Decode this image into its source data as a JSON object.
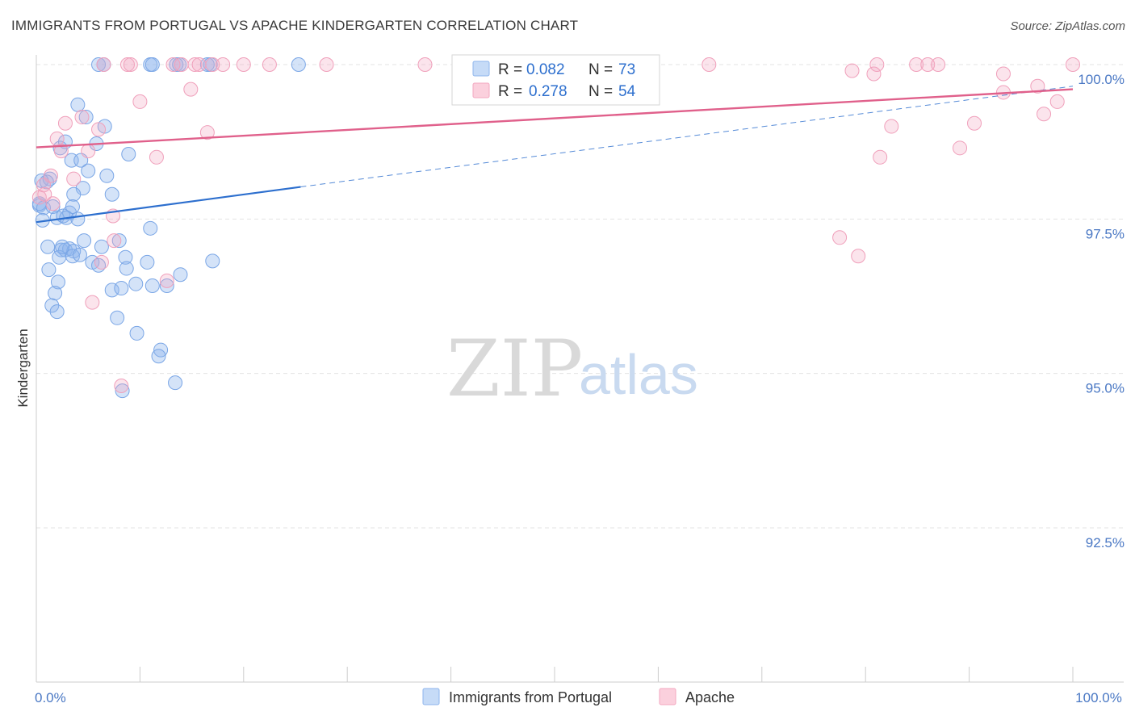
{
  "header": {
    "title": "IMMIGRANTS FROM PORTUGAL VS APACHE KINDERGARTEN CORRELATION CHART",
    "source": "Source: ZipAtlas.com"
  },
  "watermark": {
    "zip": "ZIP",
    "atlas": "atlas"
  },
  "legend_box": {
    "r_label": "R =",
    "n_label": "N =",
    "rows": [
      {
        "series": "Immigrants from Portugal",
        "r": "0.082",
        "n": "73",
        "color": "#8fb6ec"
      },
      {
        "series": "Apache",
        "r": "0.278",
        "n": "54",
        "color": "#f3a7c0"
      }
    ]
  },
  "bottom_legend": [
    {
      "label": "Immigrants from Portugal",
      "color": "#8fb6ec"
    },
    {
      "label": "Apache",
      "color": "#f3a7c0"
    }
  ],
  "chart_data": {
    "type": "scatter",
    "title": "IMMIGRANTS FROM PORTUGAL VS APACHE KINDERGARTEN CORRELATION CHART",
    "xlabel": "",
    "ylabel": "Kindergarten",
    "xlim": [
      0,
      100
    ],
    "ylim": [
      90.2,
      100.4
    ],
    "x_tick_labels": [
      {
        "value": 0,
        "label": "0.0%"
      },
      {
        "value": 100,
        "label": "100.0%"
      }
    ],
    "y_ticks": [
      {
        "value": 100.0,
        "label": "100.0%"
      },
      {
        "value": 97.5,
        "label": "97.5%"
      },
      {
        "value": 95.0,
        "label": "95.0%"
      },
      {
        "value": 92.5,
        "label": "92.5%"
      }
    ],
    "grid": true,
    "series": [
      {
        "name": "Immigrants from Portugal",
        "color": "#6f9fe0",
        "trend": {
          "x0": 0,
          "y0": 97.45,
          "x1": 25.5,
          "y1": 98.02,
          "dash_to_x": 100,
          "dash_to_y": 99.65,
          "color": "#2d6fce"
        },
        "points": [
          [
            6.0,
            100.0
          ],
          [
            6.5,
            100.0
          ],
          [
            11.0,
            100.0
          ],
          [
            11.2,
            100.0
          ],
          [
            13.5,
            100.0
          ],
          [
            13.8,
            100.0
          ],
          [
            16.5,
            100.0
          ],
          [
            16.8,
            100.0
          ],
          [
            25.3,
            100.0
          ],
          [
            4.0,
            99.35
          ],
          [
            4.8,
            99.15
          ],
          [
            6.6,
            99.0
          ],
          [
            2.3,
            98.65
          ],
          [
            2.8,
            98.75
          ],
          [
            5.8,
            98.72
          ],
          [
            3.4,
            98.45
          ],
          [
            4.3,
            98.45
          ],
          [
            8.9,
            98.55
          ],
          [
            5.0,
            98.28
          ],
          [
            6.8,
            98.2
          ],
          [
            7.3,
            97.9
          ],
          [
            4.5,
            98.0
          ],
          [
            1.3,
            98.15
          ],
          [
            0.5,
            98.12
          ],
          [
            3.6,
            97.9
          ],
          [
            0.3,
            97.72
          ],
          [
            0.7,
            97.68
          ],
          [
            1.6,
            97.7
          ],
          [
            0.6,
            97.48
          ],
          [
            2.0,
            97.52
          ],
          [
            2.6,
            97.55
          ],
          [
            3.2,
            97.6
          ],
          [
            3.5,
            97.7
          ],
          [
            2.9,
            97.52
          ],
          [
            4.0,
            97.5
          ],
          [
            1.1,
            97.05
          ],
          [
            2.4,
            97.0
          ],
          [
            2.8,
            97.0
          ],
          [
            3.2,
            97.02
          ],
          [
            3.6,
            96.98
          ],
          [
            4.6,
            97.15
          ],
          [
            6.3,
            97.05
          ],
          [
            8.0,
            97.15
          ],
          [
            11.0,
            97.35
          ],
          [
            2.2,
            96.88
          ],
          [
            3.5,
            96.9
          ],
          [
            5.4,
            96.8
          ],
          [
            8.6,
            96.88
          ],
          [
            8.7,
            96.7
          ],
          [
            10.7,
            96.8
          ],
          [
            13.9,
            96.6
          ],
          [
            17.0,
            96.82
          ],
          [
            1.2,
            96.68
          ],
          [
            2.1,
            96.48
          ],
          [
            1.8,
            96.3
          ],
          [
            7.3,
            96.35
          ],
          [
            8.2,
            96.38
          ],
          [
            9.6,
            96.45
          ],
          [
            11.2,
            96.42
          ],
          [
            12.6,
            96.42
          ],
          [
            1.5,
            96.1
          ],
          [
            2.0,
            96.0
          ],
          [
            7.8,
            95.9
          ],
          [
            9.7,
            95.65
          ],
          [
            12.0,
            95.38
          ],
          [
            11.8,
            95.28
          ],
          [
            13.4,
            94.85
          ],
          [
            8.3,
            94.72
          ],
          [
            0.3,
            97.75
          ],
          [
            1.0,
            98.1
          ],
          [
            2.5,
            97.05
          ],
          [
            4.2,
            96.92
          ],
          [
            6.0,
            96.75
          ]
        ]
      },
      {
        "name": "Apache",
        "color": "#ee8eae",
        "trend": {
          "x0": 0,
          "y0": 98.66,
          "x1": 100,
          "y1": 99.6,
          "color": "#e0608b"
        },
        "points": [
          [
            6.5,
            100.0
          ],
          [
            8.8,
            100.0
          ],
          [
            9.1,
            100.0
          ],
          [
            13.2,
            100.0
          ],
          [
            14.0,
            100.0
          ],
          [
            15.3,
            100.0
          ],
          [
            15.7,
            100.0
          ],
          [
            17.0,
            100.0
          ],
          [
            18.0,
            100.0
          ],
          [
            20.0,
            100.0
          ],
          [
            22.5,
            100.0
          ],
          [
            28.0,
            100.0
          ],
          [
            37.5,
            100.0
          ],
          [
            64.9,
            100.0
          ],
          [
            81.1,
            100.0
          ],
          [
            84.9,
            100.0
          ],
          [
            86.0,
            100.0
          ],
          [
            87.0,
            100.0
          ],
          [
            100.0,
            100.0
          ],
          [
            78.7,
            99.9
          ],
          [
            80.8,
            99.85
          ],
          [
            93.3,
            99.85
          ],
          [
            14.9,
            99.6
          ],
          [
            96.6,
            99.65
          ],
          [
            93.3,
            99.55
          ],
          [
            10.0,
            99.4
          ],
          [
            98.5,
            99.4
          ],
          [
            4.4,
            99.15
          ],
          [
            2.8,
            99.05
          ],
          [
            6.0,
            98.95
          ],
          [
            16.5,
            98.9
          ],
          [
            82.5,
            99.0
          ],
          [
            90.5,
            99.05
          ],
          [
            2.0,
            98.8
          ],
          [
            5.0,
            98.6
          ],
          [
            11.6,
            98.5
          ],
          [
            81.4,
            98.5
          ],
          [
            89.1,
            98.65
          ],
          [
            97.2,
            99.2
          ],
          [
            1.4,
            98.2
          ],
          [
            3.6,
            98.15
          ],
          [
            0.7,
            98.05
          ],
          [
            0.3,
            97.85
          ],
          [
            1.6,
            97.75
          ],
          [
            7.4,
            97.55
          ],
          [
            7.5,
            97.15
          ],
          [
            6.3,
            96.8
          ],
          [
            12.6,
            96.5
          ],
          [
            5.4,
            96.15
          ],
          [
            77.5,
            97.2
          ],
          [
            79.3,
            96.9
          ],
          [
            8.2,
            94.8
          ],
          [
            0.8,
            97.9
          ],
          [
            2.4,
            98.6
          ]
        ]
      }
    ]
  }
}
